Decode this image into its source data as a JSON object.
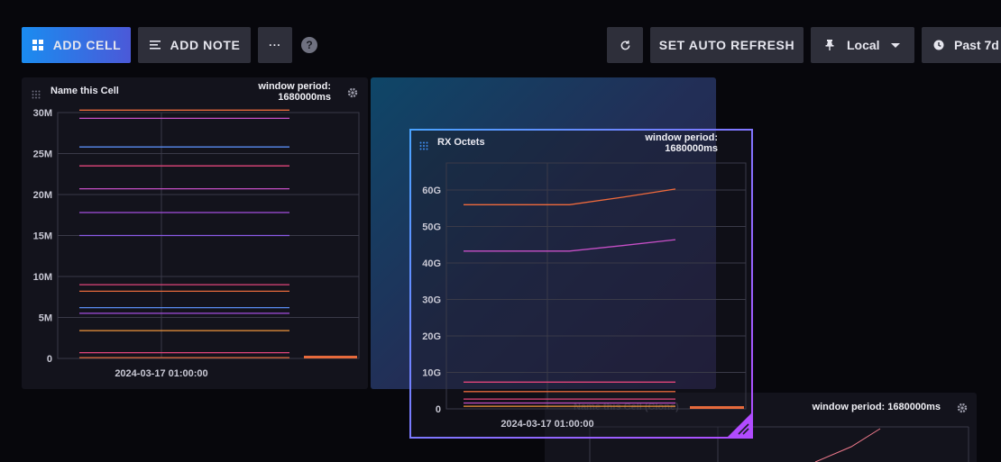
{
  "toolbar": {
    "add_cell_label": "ADD CELL",
    "add_note_label": "ADD NOTE",
    "more_label": "···",
    "help_label": "?",
    "auto_refresh_label": "SET AUTO REFRESH",
    "timezone_label": "Local",
    "time_range_label": "Past 7d"
  },
  "cells": {
    "left": {
      "title": "Name this Cell",
      "window_line1": "window period:",
      "window_line2": "1680000ms"
    },
    "dragging": {
      "title": "RX Octets",
      "window_line1": "window period:",
      "window_line2": "1680000ms"
    },
    "background": {
      "title": "Name this Cell (Clone)",
      "window": "window period: 1680000ms"
    }
  },
  "colors": {
    "accent_blue": "#1a8cf0",
    "accent_purple": "#b24bff",
    "panel": "#13131c"
  },
  "chart_data": [
    {
      "type": "line",
      "ylim": [
        0,
        30000000
      ],
      "ytick_labels": [
        "0",
        "5M",
        "10M",
        "15M",
        "20M",
        "25M",
        "30M"
      ],
      "xtick_labels": [
        "2024-03-17 01:00:00"
      ],
      "series": [
        {
          "values": [
            30300000,
            30300000
          ],
          "color": "#e66a3c"
        },
        {
          "values": [
            29300000,
            29300000
          ],
          "color": "#c64fc6"
        },
        {
          "values": [
            25800000,
            25800000
          ],
          "color": "#5a8cf0"
        },
        {
          "values": [
            23500000,
            23500000
          ],
          "color": "#e0457a"
        },
        {
          "values": [
            20700000,
            20700000
          ],
          "color": "#c64fc6"
        },
        {
          "values": [
            17800000,
            17800000
          ],
          "color": "#a54ee0"
        },
        {
          "values": [
            15000000,
            15000000
          ],
          "color": "#8c5ae6"
        },
        {
          "values": [
            9000000,
            9000000
          ],
          "color": "#e0457a"
        },
        {
          "values": [
            8200000,
            8200000
          ],
          "color": "#e66a3c"
        },
        {
          "values": [
            6200000,
            6200000
          ],
          "color": "#5a8cf0"
        },
        {
          "values": [
            5500000,
            5500000
          ],
          "color": "#a54ee0"
        },
        {
          "values": [
            3400000,
            3400000
          ],
          "color": "#f0953c"
        },
        {
          "values": [
            700000,
            700000
          ],
          "color": "#e0457a"
        },
        {
          "values": [
            100000,
            100000
          ],
          "color": "#e66a3c"
        }
      ]
    },
    {
      "type": "line",
      "ylim": [
        0,
        67000000000
      ],
      "ytick_labels": [
        "0",
        "10G",
        "20G",
        "30G",
        "40G",
        "50G",
        "60G"
      ],
      "xtick_labels": [
        "2024-03-17 01:00:00"
      ],
      "series": [
        {
          "values": [
            62500000000,
            62500000000,
            62500000000,
            64800000000,
            67300000000
          ],
          "color": "#f06a3c"
        },
        {
          "values": [
            48300000000,
            48300000000,
            48300000000,
            50000000000,
            51800000000
          ],
          "color": "#c64fc6"
        },
        {
          "values": [
            8200000000,
            8200000000,
            8200000000,
            8200000000,
            8200000000
          ],
          "color": "#e0457a"
        },
        {
          "values": [
            5300000000,
            5300000000,
            5300000000,
            5300000000,
            5300000000
          ],
          "color": "#e66a3c"
        },
        {
          "values": [
            3000000000,
            3000000000,
            3000000000,
            3000000000,
            3000000000
          ],
          "color": "#e0457a"
        },
        {
          "values": [
            1800000000,
            1800000000,
            1800000000,
            1800000000,
            1800000000
          ],
          "color": "#c64fc6"
        },
        {
          "values": [
            800000000,
            800000000,
            800000000,
            800000000,
            800000000
          ],
          "color": "#f0953c"
        }
      ]
    }
  ]
}
